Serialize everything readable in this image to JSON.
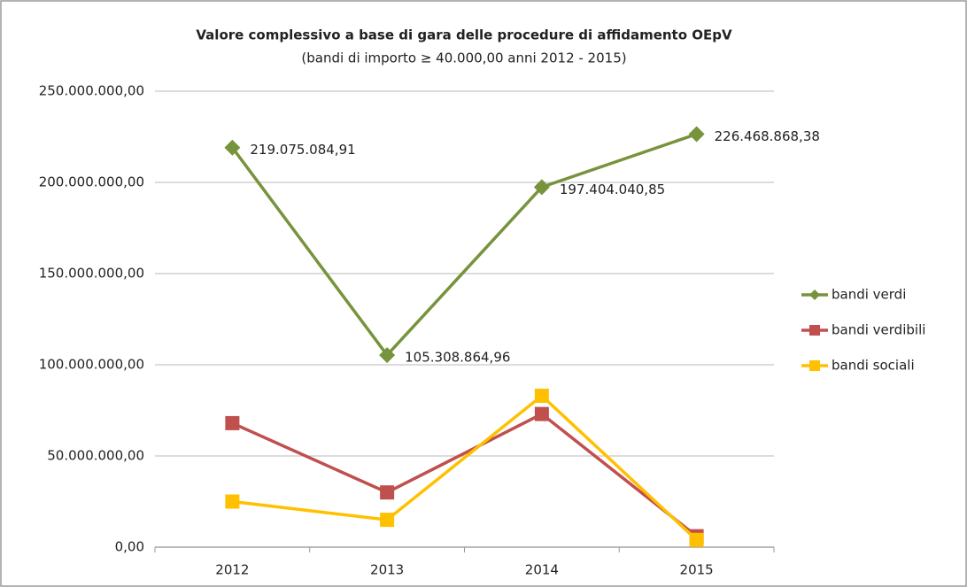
{
  "chart_data": {
    "type": "line",
    "title": "Valore complessivo a base di gara delle procedure di affidamento OEpV",
    "subtitle": "(bandi di importo ≥ 40.000,00 anni 2012 - 2015)",
    "categories": [
      "2012",
      "2013",
      "2014",
      "2015"
    ],
    "series": [
      {
        "name": "bandi verdi",
        "color": "#77933c",
        "marker": "diamond",
        "values": [
          219075084.91,
          105308864.96,
          197404040.85,
          226468868.38
        ],
        "value_labels": [
          "219.075.084,91",
          "105.308.864,96",
          "197.404.040,85",
          "226.468.868,38"
        ]
      },
      {
        "name": "bandi verdibili",
        "color": "#c0504d",
        "marker": "square",
        "values": [
          68000000,
          30000000,
          73000000,
          6000000
        ]
      },
      {
        "name": "bandi sociali",
        "color": "#ffc000",
        "marker": "square",
        "values": [
          25000000,
          15000000,
          83000000,
          4000000
        ]
      }
    ],
    "ylim": [
      0,
      250000000
    ],
    "yticks": [
      {
        "value": 0,
        "label": "0,00"
      },
      {
        "value": 50000000,
        "label": "50.000.000,00"
      },
      {
        "value": 100000000,
        "label": "100.000.000,00"
      },
      {
        "value": 150000000,
        "label": "150.000.000,00"
      },
      {
        "value": 200000000,
        "label": "200.000.000,00"
      },
      {
        "value": 250000000,
        "label": "250.000.000,00"
      }
    ],
    "grid": true,
    "legend": "right"
  }
}
